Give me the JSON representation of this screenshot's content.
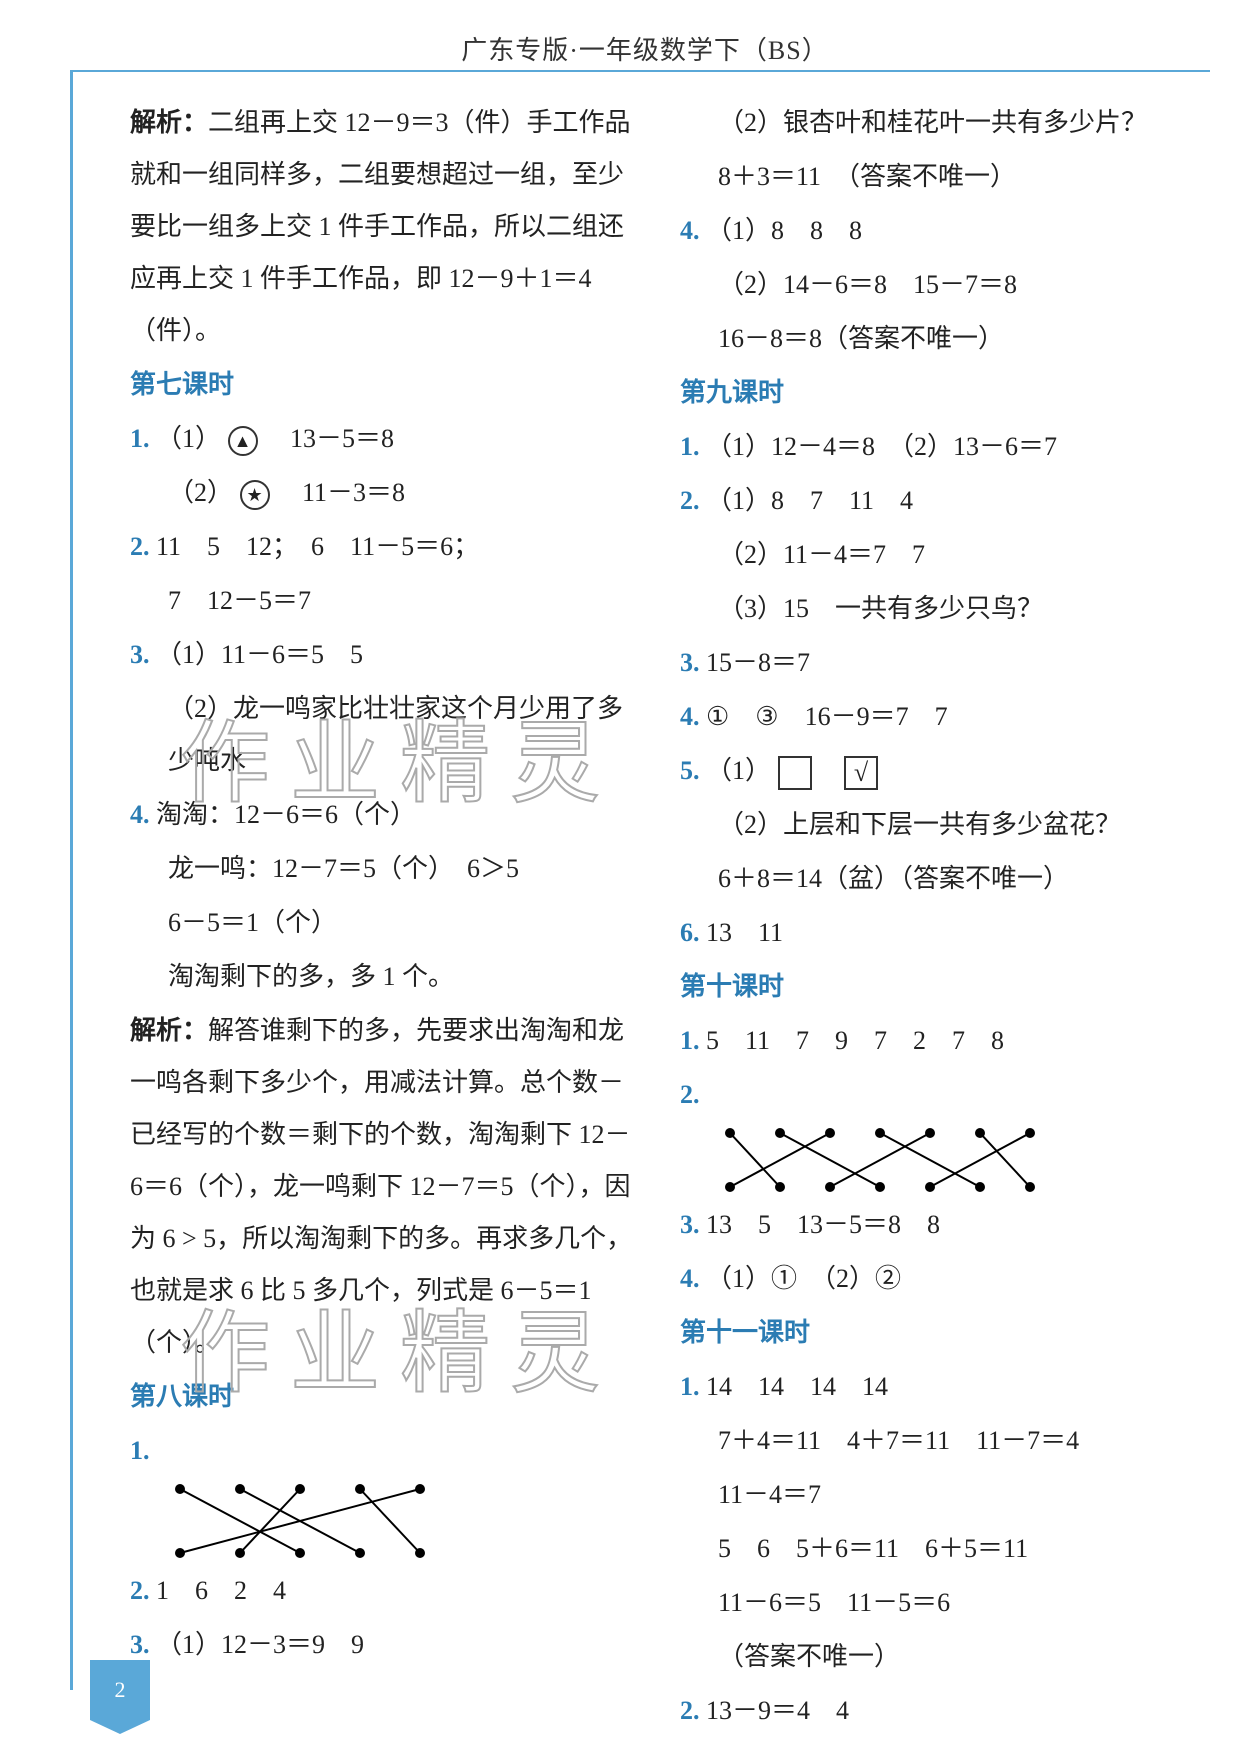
{
  "header": "广东专版·一年级数学下（BS）",
  "page_number": "2",
  "watermark_text": "作业精灵",
  "colors": {
    "accent": "#2b7cb3",
    "border": "#5aa8d8",
    "text": "#222222",
    "watermark_stroke": "#aaaaaa"
  },
  "left": {
    "p1_label": "解析：",
    "p1": "二组再上交 12－9＝3（件）手工作品就和一组同样多，二组要想超过一组，至少要比一组多上交 1 件手工作品，所以二组还应再上交 1 件手工作品，即 12－9＋1＝4（件）。",
    "lesson7": "第七课时",
    "l7_1a": "（1）",
    "l7_1a_eq": "　13－5＝8",
    "l7_1b": "（2）",
    "l7_1b_eq": "　11－3＝8",
    "l7_2a": "11　5　12；　6　11－5＝6；",
    "l7_2b": "7　12－5＝7",
    "l7_3a": "（1）11－6＝5　5",
    "l7_3b": "（2）龙一鸣家比壮壮家这个月少用了多少吨水",
    "l7_4a": "淘淘：12－6＝6（个）",
    "l7_4b": "龙一鸣：12－7＝5（个）　6＞5",
    "l7_4c": "6－5＝1（个）",
    "l7_4d": "淘淘剩下的多，多 1 个。",
    "p2_label": "解析：",
    "p2": "解答谁剩下的多，先要求出淘淘和龙一鸣各剩下多少个，用减法计算。总个数－已经写的个数＝剩下的个数，淘淘剩下 12－6＝6（个），龙一鸣剩下 12－7＝5（个），因为 6 > 5，所以淘淘剩下的多。再求多几个，也就是求 6 比 5 多几个，列式是 6－5＝1（个）。",
    "lesson8": "第八课时",
    "l8_1": "",
    "l8_2": "1　6　2　4",
    "l8_3": "（1）12－3＝9　9",
    "matching1": {
      "top_x": [
        10,
        70,
        130,
        190,
        250
      ],
      "bot_x": [
        10,
        70,
        130,
        190,
        250
      ],
      "edges": [
        [
          0,
          2
        ],
        [
          1,
          3
        ],
        [
          2,
          1
        ],
        [
          3,
          4
        ],
        [
          4,
          0
        ]
      ],
      "dot_color": "#000000",
      "line_color": "#000000"
    }
  },
  "right": {
    "r0a": "（2）银杏叶和桂花叶一共有多少片？",
    "r0b": "8＋3＝11　（答案不唯一）",
    "r4a": "（1）8　8　8",
    "r4b": "（2）14－6＝8　15－7＝8",
    "r4c": "16－8＝8（答案不唯一）",
    "lesson9": "第九课时",
    "l9_1": "（1）12－4＝8　（2）13－6＝7",
    "l9_2a": "（1）8　7　11　4",
    "l9_2b": "（2）11－4＝7　7",
    "l9_2c": "（3）15　一共有多少只鸟？",
    "l9_3": "15－8＝7",
    "l9_4": "①　③　16－9＝7　7",
    "l9_5a": "（1）",
    "l9_5b": "（2）上层和下层一共有多少盆花？",
    "l9_5c": "6＋8＝14（盆）（答案不唯一）",
    "l9_6": "13　11",
    "lesson10": "第十课时",
    "l10_1": "5　11　7　9　7　2　7　8",
    "l10_2": "",
    "l10_3": "13　5　13－5＝8　8",
    "l10_4": "（1）①　（2）②",
    "lesson11": "第十一课时",
    "l11_1a": "14　14　14　14",
    "l11_1b": "7＋4＝11　4＋7＝11　11－7＝4",
    "l11_1c": "11－4＝7",
    "l11_1d": "5　6　5＋6＝11　6＋5＝11",
    "l11_1e": "11－6＝5　11－5＝6",
    "l11_1f": "（答案不唯一）",
    "l11_2": "13－9＝4　4",
    "matching2": {
      "top_x": [
        10,
        60,
        110,
        160,
        210,
        260,
        310
      ],
      "bot_x": [
        10,
        60,
        110,
        160,
        210,
        260,
        310
      ],
      "edges": [
        [
          0,
          1
        ],
        [
          1,
          3
        ],
        [
          2,
          0
        ],
        [
          3,
          5
        ],
        [
          4,
          2
        ],
        [
          5,
          6
        ],
        [
          6,
          4
        ]
      ],
      "dot_color": "#000000",
      "line_color": "#000000"
    }
  }
}
